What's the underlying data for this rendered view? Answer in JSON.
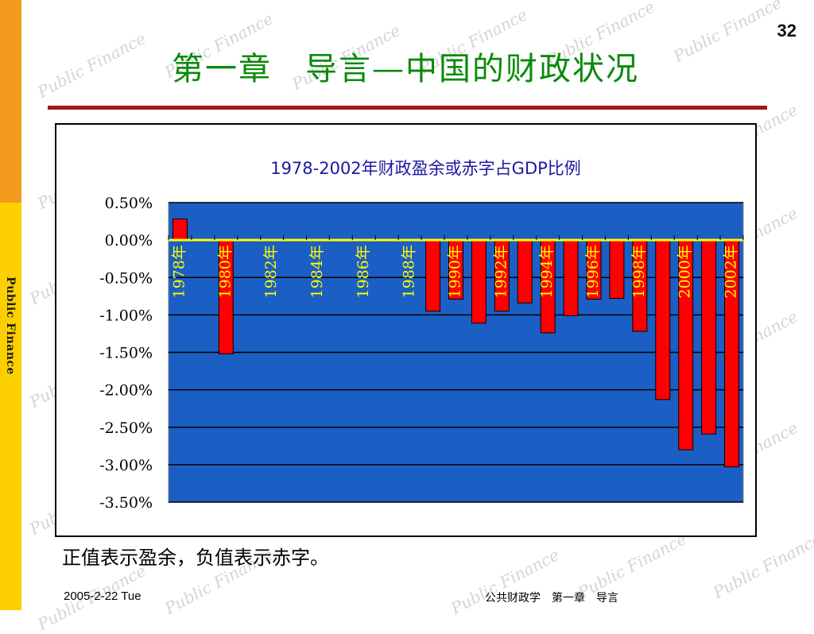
{
  "slide": {
    "title": "第一章　导言—中国的财政状况",
    "page_number": "32",
    "caption": "正值表示盈余，负值表示赤字。",
    "sidebar_text": "Public  Finance",
    "watermark_text": "Public Finance",
    "footer_date": "2005-2-22 Tue",
    "footer_course": "公共财政学　第一章　导言"
  },
  "colors": {
    "sidebar_orange": "#f29a1c",
    "sidebar_yellow": "#fccf00",
    "title_green": "#0a8a0a",
    "title_rule": "#a01818",
    "plot_background": "#1c5fc4",
    "bar_fill": "#ff0000",
    "category_labels": "#ffff00"
  },
  "chart_data": {
    "type": "bar",
    "title": "1978-2002年财政盈余或赤字占GDP比例",
    "xlabel": "",
    "ylabel": "",
    "ylim": [
      -0.035,
      0.005
    ],
    "y_ticks": [
      0.005,
      0.0,
      -0.005,
      -0.01,
      -0.015,
      -0.02,
      -0.025,
      -0.03,
      -0.035
    ],
    "y_tick_labels": [
      "0.50%",
      "0.00%",
      "-0.50%",
      "-1.00%",
      "-1.50%",
      "-2.00%",
      "-2.50%",
      "-3.00%",
      "-3.50%"
    ],
    "grid": true,
    "legend": "none",
    "categories": [
      "1978年",
      "1979年",
      "1980年",
      "1981年",
      "1982年",
      "1983年",
      "1984年",
      "1985年",
      "1986年",
      "1987年",
      "1988年",
      "1989年",
      "1990年",
      "1991年",
      "1992年",
      "1993年",
      "1994年",
      "1995年",
      "1996年",
      "1997年",
      "1998年",
      "1999年",
      "2000年",
      "2001年",
      "2002年"
    ],
    "category_labels_shown": [
      "1978年",
      "",
      "1980年",
      "",
      "1982年",
      "",
      "1984年",
      "",
      "1986年",
      "",
      "1988年",
      "",
      "1990年",
      "",
      "1992年",
      "",
      "1994年",
      "",
      "1996年",
      "",
      "1998年",
      "",
      "2000年",
      "",
      "2002年"
    ],
    "series": [
      {
        "values": [
          0.0028,
          -0.0001,
          -0.0152,
          -0.0001,
          -0.0001,
          -0.0001,
          -0.0001,
          0.0,
          -0.0001,
          -0.0001,
          -0.0001,
          -0.0095,
          -0.0079,
          -0.0111,
          -0.0095,
          -0.0084,
          -0.0124,
          -0.0101,
          -0.0079,
          -0.0078,
          -0.0122,
          -0.0213,
          -0.028,
          -0.0259,
          -0.0303
        ]
      }
    ]
  }
}
